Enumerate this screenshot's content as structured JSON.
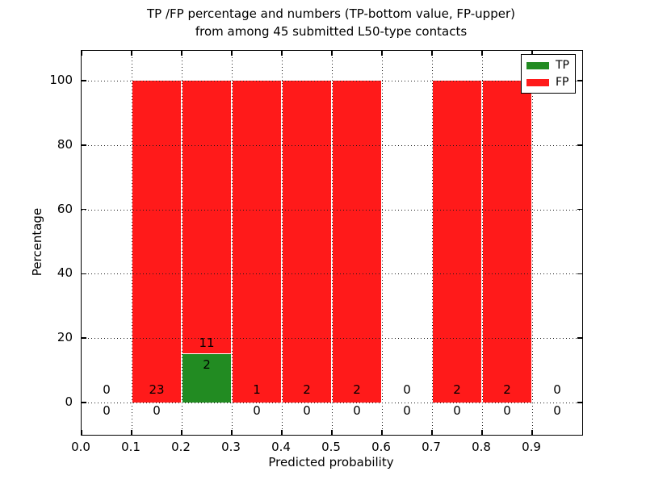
{
  "figure": {
    "title_line1": "TP /FP percentage and numbers (TP-bottom value, FP-upper)",
    "title_line2": "from among 45 submitted L50-type contacts"
  },
  "chart_data": {
    "type": "bar",
    "stacked": true,
    "title": "TP /FP percentage and numbers (TP-bottom value, FP-upper)\nfrom among 45 submitted L50-type contacts",
    "xlabel": "Predicted probability",
    "ylabel": "Percentage",
    "xlim": [
      0.0,
      1.0
    ],
    "ylim": [
      -10,
      109
    ],
    "xticks": [
      "0.0",
      "0.1",
      "0.2",
      "0.3",
      "0.4",
      "0.5",
      "0.6",
      "0.7",
      "0.8",
      "0.9"
    ],
    "yticks": [
      0,
      20,
      40,
      60,
      80,
      100
    ],
    "grid": {
      "style": "dotted",
      "over_bars": true
    },
    "total_contacts": 45,
    "legend": {
      "position": "upper-right",
      "entries": [
        {
          "label": "TP",
          "color": "#228b22"
        },
        {
          "label": "FP",
          "color": "#ff1a1a"
        }
      ]
    },
    "bins": [
      {
        "range": [
          0.0,
          0.1
        ],
        "tp_count": 0,
        "fp_count": 0,
        "tp_pct": 0,
        "fp_pct": 0
      },
      {
        "range": [
          0.1,
          0.2
        ],
        "tp_count": 0,
        "fp_count": 23,
        "tp_pct": 0,
        "fp_pct": 100
      },
      {
        "range": [
          0.2,
          0.3
        ],
        "tp_count": 2,
        "fp_count": 11,
        "tp_pct": 15.38,
        "fp_pct": 84.62
      },
      {
        "range": [
          0.3,
          0.4
        ],
        "tp_count": 0,
        "fp_count": 1,
        "tp_pct": 0,
        "fp_pct": 100
      },
      {
        "range": [
          0.4,
          0.5
        ],
        "tp_count": 0,
        "fp_count": 2,
        "tp_pct": 0,
        "fp_pct": 100
      },
      {
        "range": [
          0.5,
          0.6
        ],
        "tp_count": 0,
        "fp_count": 2,
        "tp_pct": 0,
        "fp_pct": 100
      },
      {
        "range": [
          0.6,
          0.7
        ],
        "tp_count": 0,
        "fp_count": 0,
        "tp_pct": 0,
        "fp_pct": 0
      },
      {
        "range": [
          0.7,
          0.8
        ],
        "tp_count": 0,
        "fp_count": 2,
        "tp_pct": 0,
        "fp_pct": 100
      },
      {
        "range": [
          0.8,
          0.9
        ],
        "tp_count": 0,
        "fp_count": 2,
        "tp_pct": 0,
        "fp_pct": 100
      },
      {
        "range": [
          0.9,
          1.0
        ],
        "tp_count": 0,
        "fp_count": 0,
        "tp_pct": 0,
        "fp_pct": 0
      }
    ]
  }
}
